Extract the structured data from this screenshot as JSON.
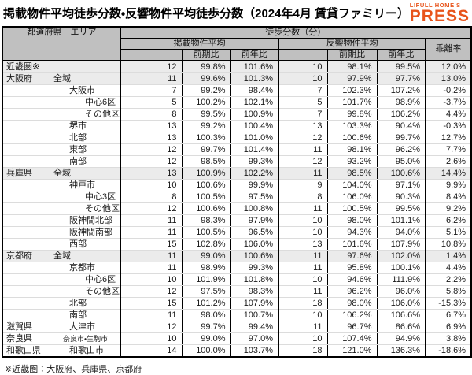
{
  "title": "掲載物件平均徒歩分数・反響物件平均徒歩分数（2024年4月 賃貸ファミリー）",
  "logo": {
    "brand": "LIFULL HOME'S",
    "product": "PRESS",
    "color": "#E8541B"
  },
  "footnote": "※近畿圏：大阪府、兵庫県、京都府",
  "colors": {
    "accent_orange": "#E8541B",
    "header_bg": "#c0c0c0",
    "shaded_row_bg": "#ebebeb",
    "border": "#000000"
  },
  "chart_data": {
    "type": "table",
    "title": "掲載物件平均徒歩分数・反響物件平均徒歩分数（2024年4月 賃貸ファミリー）",
    "headers": {
      "corner": "都道府県　エリア",
      "span": "徒歩分数（分）",
      "listed_group": "掲載物件平均",
      "response_group": "反響物件平均",
      "deviation": "乖離率",
      "prev_period": "前期比",
      "prev_year": "前年比"
    },
    "value_columns": [
      "掲載物件平均",
      "掲載前期比",
      "掲載前年比",
      "反響物件平均",
      "反響前期比",
      "反響前年比",
      "乖離率"
    ],
    "rows": [
      {
        "pref": "近畿圏※",
        "area": "",
        "lvl": 0,
        "shaded": true,
        "group_start": false,
        "small": false,
        "values": [
          "12",
          "99.8%",
          "101.6%",
          "10",
          "98.1%",
          "99.5%",
          "12.0%"
        ]
      },
      {
        "pref": "大阪府",
        "area": "全域",
        "lvl": 1,
        "shaded": true,
        "group_start": true,
        "small": false,
        "values": [
          "11",
          "99.6%",
          "101.3%",
          "10",
          "97.9%",
          "97.7%",
          "13.0%"
        ]
      },
      {
        "pref": "",
        "area": "大阪市",
        "lvl": 2,
        "shaded": false,
        "group_start": false,
        "small": false,
        "values": [
          "7",
          "99.2%",
          "98.4%",
          "7",
          "102.3%",
          "107.2%",
          "-0.2%"
        ]
      },
      {
        "pref": "",
        "area": "中心6区",
        "lvl": 3,
        "shaded": false,
        "group_start": false,
        "small": false,
        "values": [
          "5",
          "100.2%",
          "102.1%",
          "5",
          "101.7%",
          "98.9%",
          "-3.7%"
        ]
      },
      {
        "pref": "",
        "area": "その他区",
        "lvl": 3,
        "shaded": false,
        "group_start": false,
        "small": false,
        "values": [
          "8",
          "99.5%",
          "100.9%",
          "7",
          "99.8%",
          "106.2%",
          "4.4%"
        ]
      },
      {
        "pref": "",
        "area": "堺市",
        "lvl": 2,
        "shaded": false,
        "group_start": false,
        "small": false,
        "values": [
          "13",
          "99.2%",
          "100.4%",
          "13",
          "103.3%",
          "90.4%",
          "-0.3%"
        ]
      },
      {
        "pref": "",
        "area": "北部",
        "lvl": 2,
        "shaded": false,
        "group_start": false,
        "small": false,
        "values": [
          "13",
          "100.3%",
          "101.0%",
          "12",
          "100.6%",
          "99.7%",
          "12.7%"
        ]
      },
      {
        "pref": "",
        "area": "東部",
        "lvl": 2,
        "shaded": false,
        "group_start": false,
        "small": false,
        "values": [
          "12",
          "99.7%",
          "101.4%",
          "11",
          "98.1%",
          "96.2%",
          "7.7%"
        ]
      },
      {
        "pref": "",
        "area": "南部",
        "lvl": 2,
        "shaded": false,
        "group_start": false,
        "small": false,
        "values": [
          "12",
          "98.5%",
          "99.3%",
          "12",
          "93.2%",
          "95.0%",
          "2.6%"
        ]
      },
      {
        "pref": "兵庫県",
        "area": "全域",
        "lvl": 1,
        "shaded": true,
        "group_start": true,
        "small": false,
        "values": [
          "13",
          "100.9%",
          "102.2%",
          "11",
          "98.5%",
          "100.6%",
          "14.4%"
        ]
      },
      {
        "pref": "",
        "area": "神戸市",
        "lvl": 2,
        "shaded": false,
        "group_start": false,
        "small": false,
        "values": [
          "10",
          "100.6%",
          "99.9%",
          "9",
          "104.0%",
          "97.1%",
          "9.9%"
        ]
      },
      {
        "pref": "",
        "area": "中心3区",
        "lvl": 3,
        "shaded": false,
        "group_start": false,
        "small": false,
        "values": [
          "8",
          "100.5%",
          "97.5%",
          "8",
          "106.0%",
          "90.3%",
          "8.4%"
        ]
      },
      {
        "pref": "",
        "area": "その他区",
        "lvl": 3,
        "shaded": false,
        "group_start": false,
        "small": false,
        "values": [
          "12",
          "100.6%",
          "100.8%",
          "11",
          "100.5%",
          "99.5%",
          "9.2%"
        ]
      },
      {
        "pref": "",
        "area": "阪神間北部",
        "lvl": 2,
        "shaded": false,
        "group_start": false,
        "small": false,
        "values": [
          "11",
          "98.3%",
          "97.9%",
          "10",
          "98.0%",
          "101.1%",
          "6.2%"
        ]
      },
      {
        "pref": "",
        "area": "阪神間南部",
        "lvl": 2,
        "shaded": false,
        "group_start": false,
        "small": false,
        "values": [
          "11",
          "100.5%",
          "96.5%",
          "10",
          "94.3%",
          "94.0%",
          "5.1%"
        ]
      },
      {
        "pref": "",
        "area": "西部",
        "lvl": 2,
        "shaded": false,
        "group_start": false,
        "small": false,
        "values": [
          "15",
          "102.8%",
          "106.0%",
          "13",
          "101.6%",
          "107.9%",
          "10.8%"
        ]
      },
      {
        "pref": "京都府",
        "area": "全域",
        "lvl": 1,
        "shaded": true,
        "group_start": true,
        "small": false,
        "values": [
          "11",
          "99.0%",
          "100.6%",
          "11",
          "97.6%",
          "102.0%",
          "1.4%"
        ]
      },
      {
        "pref": "",
        "area": "京都市",
        "lvl": 2,
        "shaded": false,
        "group_start": false,
        "small": false,
        "values": [
          "11",
          "98.9%",
          "99.3%",
          "11",
          "95.8%",
          "100.1%",
          "4.4%"
        ]
      },
      {
        "pref": "",
        "area": "中心6区",
        "lvl": 3,
        "shaded": false,
        "group_start": false,
        "small": false,
        "values": [
          "10",
          "101.9%",
          "101.8%",
          "10",
          "94.6%",
          "111.9%",
          "2.2%"
        ]
      },
      {
        "pref": "",
        "area": "その他区",
        "lvl": 3,
        "shaded": false,
        "group_start": false,
        "small": false,
        "values": [
          "12",
          "97.5%",
          "98.3%",
          "11",
          "96.2%",
          "96.0%",
          "5.8%"
        ]
      },
      {
        "pref": "",
        "area": "北部",
        "lvl": 2,
        "shaded": false,
        "group_start": false,
        "small": false,
        "values": [
          "15",
          "101.2%",
          "107.9%",
          "18",
          "98.0%",
          "106.0%",
          "-15.3%"
        ]
      },
      {
        "pref": "",
        "area": "南部",
        "lvl": 2,
        "shaded": false,
        "group_start": false,
        "small": false,
        "values": [
          "11",
          "98.0%",
          "100.7%",
          "10",
          "106.2%",
          "106.6%",
          "6.7%"
        ]
      },
      {
        "pref": "滋賀県",
        "area": "大津市",
        "lvl": 2,
        "shaded": false,
        "group_start": true,
        "small": false,
        "values": [
          "12",
          "99.7%",
          "99.4%",
          "11",
          "96.7%",
          "86.6%",
          "6.9%"
        ]
      },
      {
        "pref": "奈良県",
        "area": "奈良市・生駒市",
        "lvl": 2,
        "shaded": false,
        "group_start": true,
        "small": true,
        "values": [
          "10",
          "99.0%",
          "97.0%",
          "10",
          "107.4%",
          "94.9%",
          "3.8%"
        ]
      },
      {
        "pref": "和歌山県",
        "area": "和歌山市",
        "lvl": 2,
        "shaded": false,
        "group_start": true,
        "small": false,
        "values": [
          "14",
          "100.0%",
          "103.7%",
          "18",
          "121.0%",
          "136.3%",
          "-18.6%"
        ]
      }
    ]
  }
}
